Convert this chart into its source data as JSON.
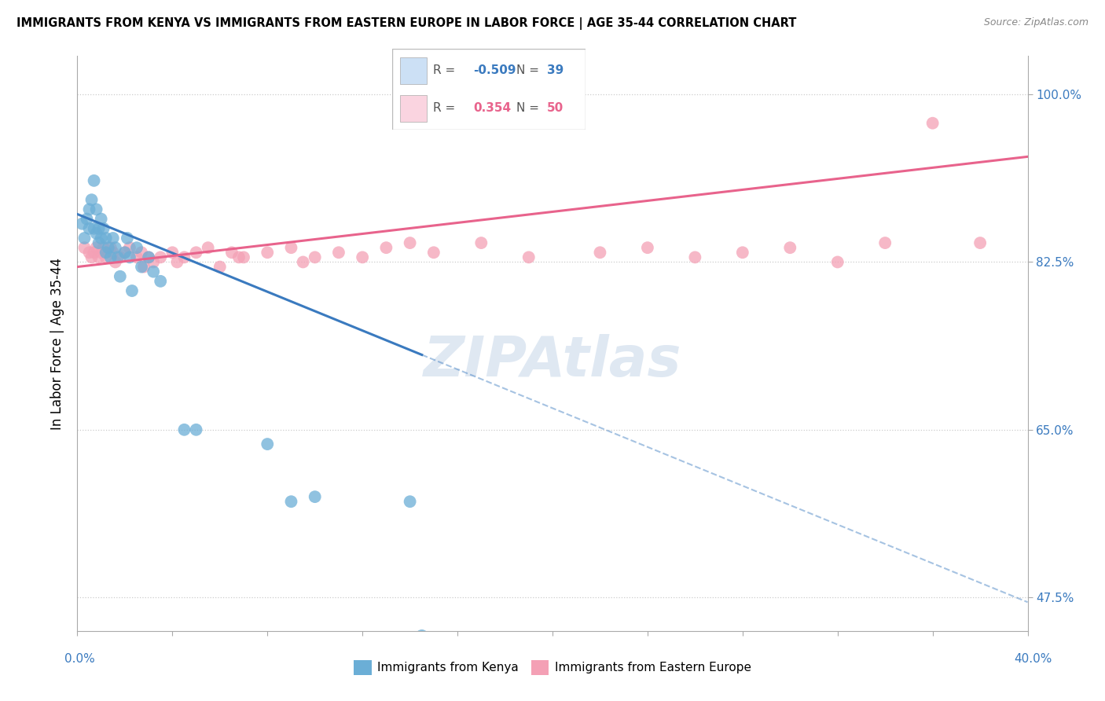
{
  "title": "IMMIGRANTS FROM KENYA VS IMMIGRANTS FROM EASTERN EUROPE IN LABOR FORCE | AGE 35-44 CORRELATION CHART",
  "source": "Source: ZipAtlas.com",
  "ylabel": "In Labor Force | Age 35-44",
  "y_ticks": [
    47.5,
    65.0,
    82.5,
    100.0
  ],
  "y_tick_labels": [
    "47.5%",
    "65.0%",
    "82.5%",
    "100.0%"
  ],
  "xlim": [
    0.0,
    40.0
  ],
  "ylim": [
    44.0,
    104.0
  ],
  "kenya_R": -0.509,
  "kenya_N": 39,
  "eastern_europe_R": 0.354,
  "eastern_europe_N": 50,
  "kenya_color": "#6baed6",
  "eastern_europe_color": "#f4a0b5",
  "kenya_trend_color": "#3a7abf",
  "eastern_europe_trend_color": "#e8638c",
  "legend_box_color": "#cce0f5",
  "legend_box_color2": "#fad4e0",
  "kenya_scatter_x": [
    0.2,
    0.3,
    0.4,
    0.5,
    0.5,
    0.6,
    0.7,
    0.7,
    0.8,
    0.8,
    0.9,
    0.9,
    1.0,
    1.0,
    1.1,
    1.2,
    1.2,
    1.3,
    1.4,
    1.5,
    1.6,
    1.7,
    2.0,
    2.1,
    2.2,
    2.5,
    2.7,
    3.0,
    3.2,
    3.5,
    4.5,
    5.0,
    8.0,
    9.0,
    10.0,
    14.0,
    14.5,
    1.8,
    2.3
  ],
  "kenya_scatter_y": [
    86.5,
    85.0,
    87.0,
    86.0,
    88.0,
    89.0,
    91.0,
    86.0,
    88.0,
    85.5,
    86.0,
    84.5,
    85.0,
    87.0,
    86.0,
    85.0,
    83.5,
    84.0,
    83.0,
    85.0,
    84.0,
    83.0,
    83.5,
    85.0,
    83.0,
    84.0,
    82.0,
    83.0,
    81.5,
    80.5,
    65.0,
    65.0,
    63.5,
    57.5,
    58.0,
    57.5,
    43.5,
    81.0,
    79.5
  ],
  "eastern_europe_scatter_x": [
    0.3,
    0.5,
    0.6,
    0.7,
    0.8,
    0.9,
    1.0,
    1.1,
    1.2,
    1.4,
    1.5,
    1.6,
    1.8,
    2.0,
    2.2,
    2.5,
    2.7,
    3.0,
    3.2,
    3.5,
    4.0,
    4.5,
    5.0,
    5.5,
    6.0,
    6.5,
    7.0,
    8.0,
    9.0,
    10.0,
    11.0,
    12.0,
    13.0,
    14.0,
    15.0,
    17.0,
    19.0,
    22.0,
    24.0,
    26.0,
    28.0,
    30.0,
    32.0,
    34.0,
    36.0,
    38.0,
    2.8,
    4.2,
    6.8,
    9.5
  ],
  "eastern_europe_scatter_y": [
    84.0,
    83.5,
    83.0,
    83.5,
    84.0,
    83.0,
    83.5,
    84.0,
    83.0,
    84.0,
    83.5,
    82.5,
    83.0,
    83.5,
    84.0,
    83.0,
    83.5,
    83.0,
    82.5,
    83.0,
    83.5,
    83.0,
    83.5,
    84.0,
    82.0,
    83.5,
    83.0,
    83.5,
    84.0,
    83.0,
    83.5,
    83.0,
    84.0,
    84.5,
    83.5,
    84.5,
    83.0,
    83.5,
    84.0,
    83.0,
    83.5,
    84.0,
    82.5,
    84.5,
    97.0,
    84.5,
    82.0,
    82.5,
    83.0,
    82.5
  ],
  "kenya_trend_x0": 0.0,
  "kenya_trend_y0": 87.5,
  "kenya_trend_x1": 40.0,
  "kenya_trend_y1": 47.0,
  "kenya_solid_end": 14.5,
  "ee_trend_x0": 0.0,
  "ee_trend_y0": 82.0,
  "ee_trend_x1": 40.0,
  "ee_trend_y1": 93.5,
  "watermark": "ZIPAtlas"
}
